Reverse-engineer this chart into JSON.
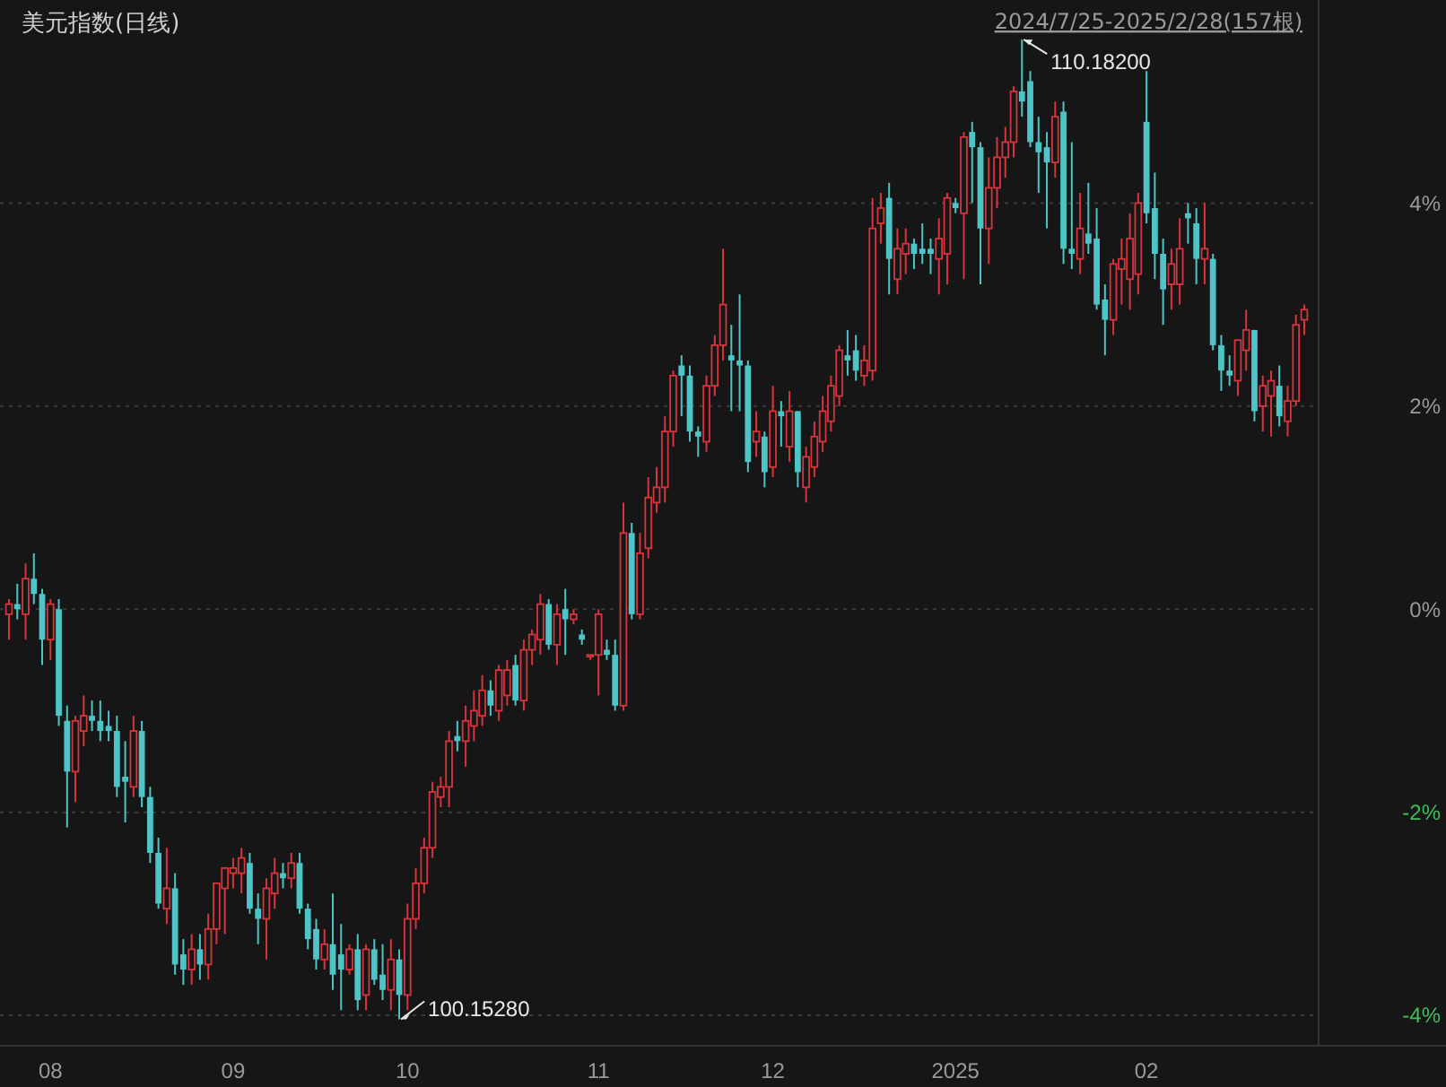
{
  "chart_data": {
    "type": "candlestick",
    "title": "美元指数(日线)",
    "subtitle": "2024/7/25-2025/2/28(157根)",
    "categories": [
      null,
      null,
      null,
      null,
      null,
      "08",
      null,
      null,
      null,
      null,
      null,
      null,
      null,
      null,
      null,
      null,
      null,
      null,
      null,
      null,
      null,
      null,
      null,
      null,
      null,
      null,
      null,
      "09",
      null,
      null,
      null,
      null,
      null,
      null,
      null,
      null,
      null,
      null,
      null,
      null,
      null,
      null,
      null,
      null,
      null,
      null,
      null,
      null,
      "10",
      null,
      null,
      null,
      null,
      null,
      null,
      null,
      null,
      null,
      null,
      null,
      null,
      null,
      null,
      null,
      null,
      null,
      null,
      null,
      null,
      null,
      null,
      "11",
      null,
      null,
      null,
      null,
      null,
      null,
      null,
      null,
      null,
      null,
      null,
      null,
      null,
      null,
      null,
      null,
      null,
      null,
      null,
      null,
      "12",
      null,
      null,
      null,
      null,
      null,
      null,
      null,
      null,
      null,
      null,
      null,
      null,
      null,
      null,
      null,
      null,
      null,
      null,
      null,
      null,
      null,
      "2025",
      null,
      null,
      null,
      null,
      null,
      null,
      null,
      null,
      null,
      null,
      null,
      null,
      null,
      null,
      null,
      null,
      null,
      null,
      null,
      null,
      null,
      null,
      "02",
      null,
      null,
      null,
      null,
      null,
      null,
      null,
      null,
      null,
      null,
      null,
      null,
      null,
      null,
      null,
      null,
      null,
      null,
      null
    ],
    "ohlc": [
      [
        -0.05,
        0.1,
        -0.3,
        0.05
      ],
      [
        0.05,
        0.25,
        -0.1,
        0.0
      ],
      [
        -0.05,
        0.45,
        -0.3,
        0.3
      ],
      [
        0.3,
        0.55,
        0.05,
        0.15
      ],
      [
        0.15,
        0.2,
        -0.55,
        -0.3
      ],
      [
        -0.3,
        0.1,
        -0.5,
        0.05
      ],
      [
        0.0,
        0.1,
        -1.15,
        -1.05
      ],
      [
        -1.1,
        -0.95,
        -2.15,
        -1.6
      ],
      [
        -1.6,
        -1.05,
        -1.9,
        -1.1
      ],
      [
        -1.2,
        -0.85,
        -1.35,
        -1.05
      ],
      [
        -1.05,
        -0.9,
        -1.2,
        -1.1
      ],
      [
        -1.1,
        -0.9,
        -1.3,
        -1.2
      ],
      [
        -1.15,
        -1.0,
        -1.3,
        -1.2
      ],
      [
        -1.2,
        -1.05,
        -1.85,
        -1.75
      ],
      [
        -1.65,
        -1.3,
        -2.1,
        -1.7
      ],
      [
        -1.75,
        -1.05,
        -1.85,
        -1.2
      ],
      [
        -1.2,
        -1.1,
        -1.95,
        -1.85
      ],
      [
        -1.85,
        -1.75,
        -2.5,
        -2.4
      ],
      [
        -2.4,
        -2.25,
        -2.95,
        -2.9
      ],
      [
        -2.95,
        -2.35,
        -3.1,
        -2.75
      ],
      [
        -2.75,
        -2.6,
        -3.6,
        -3.5
      ],
      [
        -3.4,
        -3.25,
        -3.7,
        -3.55
      ],
      [
        -3.55,
        -3.2,
        -3.7,
        -3.35
      ],
      [
        -3.35,
        -3.2,
        -3.65,
        -3.5
      ],
      [
        -3.5,
        -3.0,
        -3.65,
        -3.15
      ],
      [
        -3.15,
        -2.7,
        -3.3,
        -2.7
      ],
      [
        -2.75,
        -2.55,
        -3.2,
        -2.55
      ],
      [
        -2.6,
        -2.45,
        -2.75,
        -2.55
      ],
      [
        -2.6,
        -2.35,
        -2.8,
        -2.45
      ],
      [
        -2.5,
        -2.4,
        -3.0,
        -2.95
      ],
      [
        -2.95,
        -2.8,
        -3.3,
        -3.05
      ],
      [
        -3.05,
        -2.65,
        -3.45,
        -2.75
      ],
      [
        -2.8,
        -2.45,
        -2.95,
        -2.6
      ],
      [
        -2.6,
        -2.5,
        -2.75,
        -2.65
      ],
      [
        -2.65,
        -2.4,
        -2.75,
        -2.5
      ],
      [
        -2.5,
        -2.4,
        -3.0,
        -2.95
      ],
      [
        -2.95,
        -2.9,
        -3.35,
        -3.25
      ],
      [
        -3.15,
        -3.05,
        -3.55,
        -3.45
      ],
      [
        -3.45,
        -3.15,
        -3.55,
        -3.3
      ],
      [
        -3.3,
        -2.8,
        -3.75,
        -3.6
      ],
      [
        -3.4,
        -3.1,
        -3.95,
        -3.55
      ],
      [
        -3.55,
        -3.3,
        -3.6,
        -3.35
      ],
      [
        -3.35,
        -3.2,
        -3.95,
        -3.85
      ],
      [
        -3.8,
        -3.3,
        -3.95,
        -3.35
      ],
      [
        -3.35,
        -3.25,
        -3.7,
        -3.65
      ],
      [
        -3.6,
        -3.3,
        -3.85,
        -3.75
      ],
      [
        -3.75,
        -3.25,
        -3.95,
        -3.45
      ],
      [
        -3.45,
        -3.35,
        -4.04,
        -3.8
      ],
      [
        -3.8,
        -2.9,
        -3.95,
        -3.05
      ],
      [
        -3.05,
        -2.55,
        -3.15,
        -2.7
      ],
      [
        -2.7,
        -2.25,
        -2.8,
        -2.35
      ],
      [
        -2.35,
        -1.7,
        -2.45,
        -1.8
      ],
      [
        -1.85,
        -1.65,
        -1.95,
        -1.75
      ],
      [
        -1.75,
        -1.2,
        -1.95,
        -1.3
      ],
      [
        -1.25,
        -1.1,
        -1.4,
        -1.3
      ],
      [
        -1.3,
        -0.95,
        -1.55,
        -1.1
      ],
      [
        -1.15,
        -0.8,
        -1.3,
        -1.0
      ],
      [
        -1.05,
        -0.65,
        -1.15,
        -0.8
      ],
      [
        -0.8,
        -0.7,
        -1.05,
        -0.95
      ],
      [
        -1.0,
        -0.55,
        -1.1,
        -0.6
      ],
      [
        -0.85,
        -0.5,
        -0.95,
        -0.6
      ],
      [
        -0.55,
        -0.45,
        -0.95,
        -0.9
      ],
      [
        -0.9,
        -0.3,
        -1.0,
        -0.4
      ],
      [
        -0.4,
        -0.2,
        -0.55,
        -0.25
      ],
      [
        -0.3,
        0.15,
        -0.45,
        0.05
      ],
      [
        0.05,
        0.1,
        -0.4,
        -0.35
      ],
      [
        -0.35,
        0.05,
        -0.55,
        -0.05
      ],
      [
        0.0,
        0.2,
        -0.45,
        -0.1
      ],
      [
        -0.1,
        0.0,
        -0.15,
        -0.05
      ],
      [
        -0.25,
        -0.2,
        -0.35,
        -0.3
      ],
      [
        -0.45,
        -0.45,
        -0.5,
        -0.45
      ],
      [
        -0.45,
        0.0,
        -0.85,
        -0.05
      ],
      [
        -0.4,
        -0.3,
        -0.5,
        -0.45
      ],
      [
        -0.45,
        -0.3,
        -1.0,
        -0.95
      ],
      [
        -0.95,
        1.05,
        -1.0,
        0.75
      ],
      [
        0.75,
        0.85,
        -0.1,
        -0.05
      ],
      [
        -0.05,
        0.75,
        -0.1,
        0.55
      ],
      [
        0.6,
        1.3,
        0.5,
        1.1
      ],
      [
        1.05,
        1.4,
        0.95,
        1.2
      ],
      [
        1.2,
        1.9,
        1.05,
        1.75
      ],
      [
        1.75,
        2.35,
        1.6,
        2.3
      ],
      [
        2.4,
        2.5,
        1.9,
        2.3
      ],
      [
        2.3,
        2.4,
        1.65,
        1.75
      ],
      [
        1.75,
        1.8,
        1.5,
        1.7
      ],
      [
        1.65,
        2.3,
        1.55,
        2.2
      ],
      [
        2.2,
        2.7,
        2.1,
        2.6
      ],
      [
        2.6,
        3.55,
        2.45,
        3.0
      ],
      [
        2.5,
        2.8,
        1.95,
        2.45
      ],
      [
        2.45,
        3.1,
        1.95,
        2.4
      ],
      [
        2.4,
        2.45,
        1.35,
        1.45
      ],
      [
        1.65,
        1.95,
        1.5,
        1.75
      ],
      [
        1.7,
        1.75,
        1.2,
        1.35
      ],
      [
        1.4,
        2.2,
        1.3,
        1.95
      ],
      [
        1.95,
        2.05,
        1.6,
        1.9
      ],
      [
        1.6,
        2.15,
        1.45,
        1.95
      ],
      [
        1.95,
        1.95,
        1.2,
        1.35
      ],
      [
        1.2,
        1.6,
        1.05,
        1.5
      ],
      [
        1.4,
        1.85,
        1.3,
        1.7
      ],
      [
        1.65,
        2.1,
        1.55,
        1.95
      ],
      [
        1.85,
        2.3,
        1.75,
        2.2
      ],
      [
        2.1,
        2.6,
        2.0,
        2.55
      ],
      [
        2.5,
        2.75,
        2.3,
        2.45
      ],
      [
        2.55,
        2.7,
        2.25,
        2.35
      ],
      [
        2.3,
        2.6,
        2.2,
        2.45
      ],
      [
        2.35,
        4.05,
        2.25,
        3.75
      ],
      [
        3.8,
        4.1,
        3.6,
        3.95
      ],
      [
        4.05,
        4.2,
        3.1,
        3.45
      ],
      [
        3.25,
        3.75,
        3.1,
        3.55
      ],
      [
        3.5,
        3.75,
        3.3,
        3.6
      ],
      [
        3.6,
        3.65,
        3.35,
        3.5
      ],
      [
        3.55,
        3.8,
        3.4,
        3.5
      ],
      [
        3.55,
        3.65,
        3.3,
        3.5
      ],
      [
        3.45,
        3.85,
        3.1,
        3.65
      ],
      [
        3.5,
        4.1,
        3.2,
        4.05
      ],
      [
        4.0,
        4.05,
        3.9,
        3.95
      ],
      [
        3.9,
        4.7,
        3.25,
        4.65
      ],
      [
        4.7,
        4.8,
        4.0,
        4.55
      ],
      [
        4.55,
        4.6,
        3.2,
        3.75
      ],
      [
        3.75,
        4.45,
        3.4,
        4.15
      ],
      [
        4.15,
        4.65,
        3.95,
        4.45
      ],
      [
        4.45,
        4.75,
        4.25,
        4.6
      ],
      [
        4.6,
        5.15,
        4.45,
        5.1
      ],
      [
        5.1,
        5.61,
        4.85,
        5.0
      ],
      [
        5.2,
        5.3,
        4.55,
        4.6
      ],
      [
        4.6,
        4.85,
        4.1,
        4.5
      ],
      [
        4.55,
        4.7,
        3.75,
        4.4
      ],
      [
        4.4,
        5.0,
        4.25,
        4.85
      ],
      [
        4.9,
        5.0,
        3.4,
        3.55
      ],
      [
        3.55,
        4.6,
        3.35,
        3.5
      ],
      [
        3.45,
        4.1,
        3.3,
        3.75
      ],
      [
        3.7,
        4.2,
        3.5,
        3.6
      ],
      [
        3.65,
        3.95,
        2.95,
        3.0
      ],
      [
        3.05,
        3.2,
        2.5,
        2.85
      ],
      [
        2.85,
        3.45,
        2.7,
        3.4
      ],
      [
        3.35,
        3.65,
        3.0,
        3.45
      ],
      [
        3.25,
        3.9,
        2.95,
        3.65
      ],
      [
        3.3,
        4.1,
        3.1,
        4.0
      ],
      [
        4.8,
        5.3,
        3.8,
        3.9
      ],
      [
        3.95,
        4.3,
        3.25,
        3.5
      ],
      [
        3.5,
        3.65,
        2.8,
        3.15
      ],
      [
        3.2,
        3.55,
        2.95,
        3.4
      ],
      [
        3.2,
        3.85,
        3.0,
        3.55
      ],
      [
        3.9,
        4.0,
        3.6,
        3.85
      ],
      [
        3.8,
        3.95,
        3.2,
        3.45
      ],
      [
        3.45,
        4.0,
        3.2,
        3.55
      ],
      [
        3.45,
        3.5,
        2.55,
        2.6
      ],
      [
        2.6,
        2.7,
        2.15,
        2.35
      ],
      [
        2.35,
        2.5,
        2.2,
        2.3
      ],
      [
        2.25,
        2.65,
        2.1,
        2.65
      ],
      [
        2.55,
        2.95,
        2.35,
        2.75
      ],
      [
        2.75,
        2.75,
        1.85,
        1.95
      ],
      [
        2.0,
        2.3,
        1.75,
        2.2
      ],
      [
        2.1,
        2.35,
        1.7,
        2.25
      ],
      [
        2.2,
        2.4,
        1.8,
        1.9
      ],
      [
        1.85,
        2.2,
        1.7,
        2.05
      ],
      [
        2.05,
        2.9,
        2.0,
        2.8
      ],
      [
        2.85,
        3.0,
        2.7,
        2.95
      ]
    ],
    "colors": [
      "#d8343c",
      "#4ec4c6",
      "#d8343c",
      "#4ec4c6",
      "#4ec4c6",
      "#d8343c",
      "#4ec4c6",
      "#4ec4c6",
      "#d8343c",
      "#d8343c",
      "#4ec4c6",
      "#4ec4c6",
      "#4ec4c6",
      "#4ec4c6",
      "#4ec4c6",
      "#d8343c",
      "#4ec4c6",
      "#4ec4c6",
      "#4ec4c6",
      "#d8343c",
      "#4ec4c6",
      "#4ec4c6",
      "#d8343c",
      "#4ec4c6",
      "#d8343c",
      "#d8343c",
      "#d8343c",
      "#d8343c",
      "#d8343c",
      "#4ec4c6",
      "#4ec4c6",
      "#d8343c",
      "#d8343c",
      "#4ec4c6",
      "#d8343c",
      "#4ec4c6",
      "#4ec4c6",
      "#4ec4c6",
      "#d8343c",
      "#4ec4c6",
      "#4ec4c6",
      "#d8343c",
      "#4ec4c6",
      "#d8343c",
      "#4ec4c6",
      "#4ec4c6",
      "#d8343c",
      "#4ec4c6",
      "#d8343c",
      "#d8343c",
      "#d8343c",
      "#d8343c",
      "#d8343c",
      "#d8343c",
      "#4ec4c6",
      "#d8343c",
      "#d8343c",
      "#d8343c",
      "#4ec4c6",
      "#d8343c",
      "#d8343c",
      "#4ec4c6",
      "#d8343c",
      "#d8343c",
      "#d8343c",
      "#4ec4c6",
      "#d8343c",
      "#4ec4c6",
      "#d8343c",
      "#4ec4c6",
      "#d8343c",
      "#d8343c",
      "#4ec4c6",
      "#4ec4c6",
      "#d8343c",
      "#4ec4c6",
      "#d8343c",
      "#d8343c",
      "#d8343c",
      "#d8343c",
      "#d8343c",
      "#4ec4c6",
      "#4ec4c6",
      "#4ec4c6",
      "#d8343c",
      "#d8343c",
      "#d8343c",
      "#4ec4c6",
      "#4ec4c6",
      "#4ec4c6",
      "#d8343c",
      "#4ec4c6",
      "#d8343c",
      "#4ec4c6",
      "#d8343c",
      "#4ec4c6",
      "#d8343c",
      "#d8343c",
      "#d8343c",
      "#d8343c",
      "#d8343c",
      "#4ec4c6",
      "#4ec4c6",
      "#d8343c",
      "#d8343c",
      "#d8343c",
      "#4ec4c6",
      "#d8343c",
      "#d8343c",
      "#4ec4c6",
      "#4ec4c6",
      "#4ec4c6",
      "#d8343c",
      "#d8343c",
      "#4ec4c6",
      "#d8343c",
      "#4ec4c6",
      "#4ec4c6",
      "#d8343c",
      "#d8343c",
      "#d8343c",
      "#d8343c",
      "#4ec4c6",
      "#4ec4c6",
      "#4ec4c6",
      "#4ec4c6",
      "#d8343c",
      "#4ec4c6",
      "#4ec4c6",
      "#d8343c",
      "#4ec4c6",
      "#4ec4c6",
      "#4ec4c6",
      "#d8343c",
      "#d8343c",
      "#d8343c",
      "#d8343c",
      "#4ec4c6",
      "#4ec4c6",
      "#4ec4c6",
      "#d8343c",
      "#d8343c",
      "#4ec4c6",
      "#4ec4c6",
      "#d8343c",
      "#4ec4c6",
      "#4ec4c6",
      "#4ec4c6",
      "#d8343c",
      "#d8343c",
      "#4ec4c6",
      "#d8343c",
      "#d8343c",
      "#4ec4c6",
      "#d8343c",
      "#d8343c",
      "#d8343c"
    ],
    "ylim": [
      -4.3,
      6.0
    ],
    "yticks": [
      {
        "value": -4,
        "label": "-4%"
      },
      {
        "value": -2,
        "label": "-2%"
      },
      {
        "value": 0,
        "label": "0%"
      },
      {
        "value": 2,
        "label": "2%"
      },
      {
        "value": 4,
        "label": "4%"
      }
    ],
    "grid": "y",
    "annotations": [
      "110.18200",
      "100.15280"
    ]
  }
}
